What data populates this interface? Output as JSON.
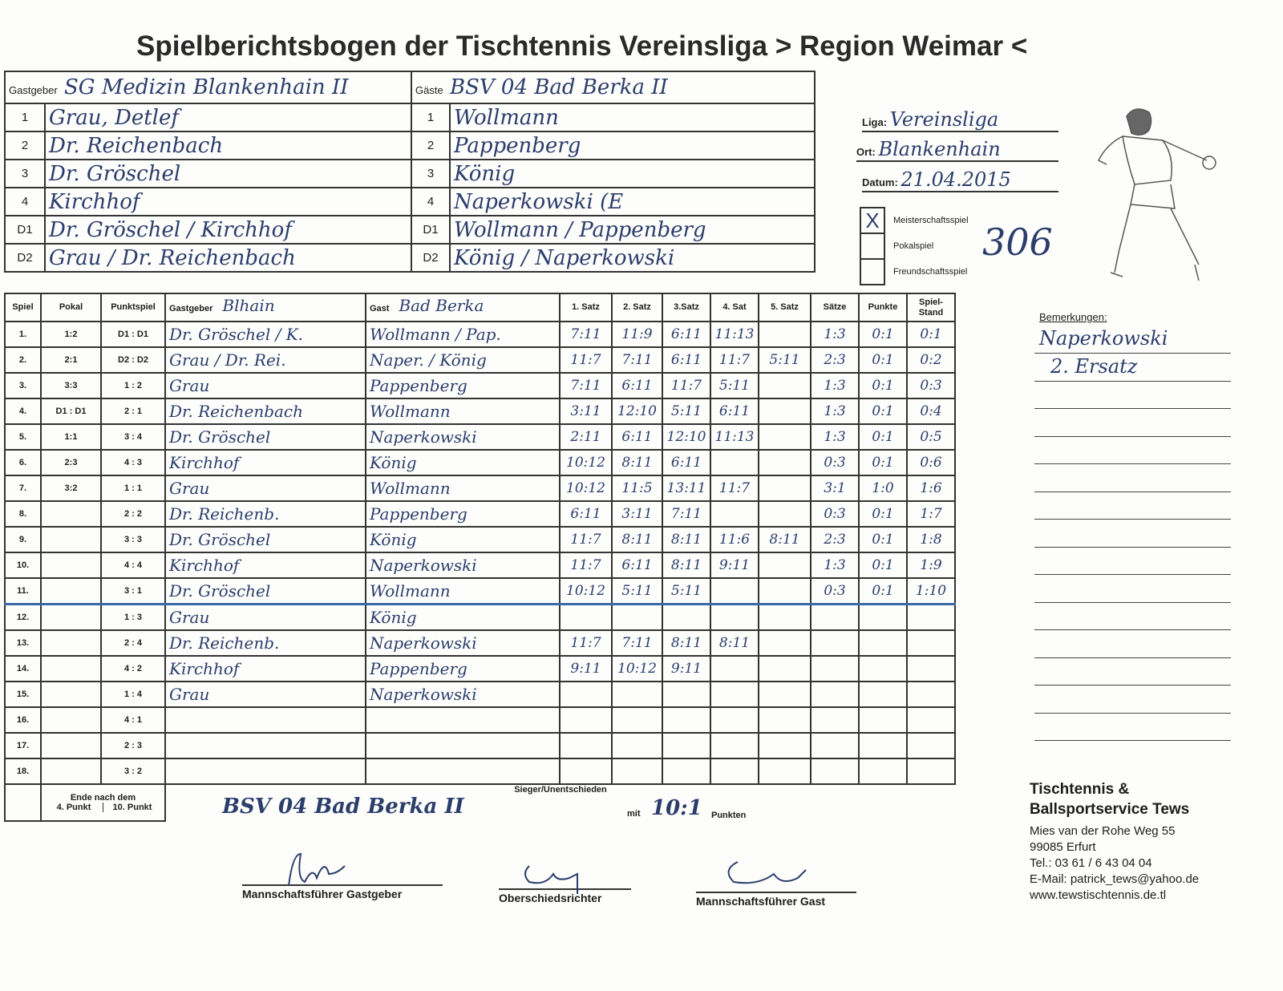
{
  "title": "Spielberichtsbogen der Tischtennis Vereinsliga > Region Weimar <",
  "players": {
    "host_label": "Gastgeber",
    "host_team": "SG Medizin Blankenhain II",
    "guest_label": "Gäste",
    "guest_team": "BSV 04 Bad Berka II",
    "rows": [
      {
        "no": "1",
        "host": "Grau, Detlef",
        "guest": "Wollmann"
      },
      {
        "no": "2",
        "host": "Dr. Reichenbach",
        "guest": "Pappenberg"
      },
      {
        "no": "3",
        "host": "Dr. Gröschel",
        "guest": "König"
      },
      {
        "no": "4",
        "host": "Kirchhof",
        "guest": "Naperkowski (E"
      },
      {
        "no": "D1",
        "host": "Dr. Gröschel / Kirchhof",
        "guest": "Wollmann / Pappenberg"
      },
      {
        "no": "D2",
        "host": "Grau / Dr. Reichenbach",
        "guest": "König / Naperkowski"
      }
    ]
  },
  "info": {
    "liga_label": "Liga:",
    "liga": "Vereinsliga",
    "ort_label": "Ort:",
    "ort": "Blankenhain",
    "datum_label": "Datum:",
    "datum": "21.04.2015",
    "types": [
      {
        "label": "Meisterschaftsspiel",
        "checked": true
      },
      {
        "label": "Pokalspiel",
        "checked": false
      },
      {
        "label": "Freundschaftsspiel",
        "checked": false
      }
    ],
    "number": "306"
  },
  "table": {
    "headers": [
      "Spiel",
      "Pokal",
      "Punktspiel",
      "Gastgeber",
      "Gast",
      "1. Satz",
      "2. Satz",
      "3.Satz",
      "4. Sat",
      "5. Satz",
      "Sätze",
      "Punkte",
      "Spiel-Stand"
    ],
    "host_hw": "Blhain",
    "guest_hw": "Bad Berka",
    "rows": [
      [
        "1.",
        "1:2",
        "D1 : D1",
        "Dr. Gröschel / K.",
        "Wollmann / Pap.",
        "7:11",
        "11:9",
        "6:11",
        "11:13",
        "",
        "1:3",
        "0:1",
        "0:1"
      ],
      [
        "2.",
        "2:1",
        "D2 : D2",
        "Grau / Dr. Rei.",
        "Naper. / König",
        "11:7",
        "7:11",
        "6:11",
        "11:7",
        "5:11",
        "2:3",
        "0:1",
        "0:2"
      ],
      [
        "3.",
        "3:3",
        "1 : 2",
        "Grau",
        "Pappenberg",
        "7:11",
        "6:11",
        "11:7",
        "5:11",
        "",
        "1:3",
        "0:1",
        "0:3"
      ],
      [
        "4.",
        "D1 : D1",
        "2 : 1",
        "Dr. Reichenbach",
        "Wollmann",
        "3:11",
        "12:10",
        "5:11",
        "6:11",
        "",
        "1:3",
        "0:1",
        "0:4"
      ],
      [
        "5.",
        "1:1",
        "3 : 4",
        "Dr. Gröschel",
        "Naperkowski",
        "2:11",
        "6:11",
        "12:10",
        "11:13",
        "",
        "1:3",
        "0:1",
        "0:5"
      ],
      [
        "6.",
        "2:3",
        "4 : 3",
        "Kirchhof",
        "König",
        "10:12",
        "8:11",
        "6:11",
        "",
        "",
        "0:3",
        "0:1",
        "0:6"
      ],
      [
        "7.",
        "3:2",
        "1 : 1",
        "Grau",
        "Wollmann",
        "10:12",
        "11:5",
        "13:11",
        "11:7",
        "",
        "3:1",
        "1:0",
        "1:6"
      ],
      [
        "8.",
        "",
        "2 : 2",
        "Dr. Reichenb.",
        "Pappenberg",
        "6:11",
        "3:11",
        "7:11",
        "",
        "",
        "0:3",
        "0:1",
        "1:7"
      ],
      [
        "9.",
        "",
        "3 : 3",
        "Dr. Gröschel",
        "König",
        "11:7",
        "8:11",
        "8:11",
        "11:6",
        "8:11",
        "2:3",
        "0:1",
        "1:8"
      ],
      [
        "10.",
        "",
        "4 : 4",
        "Kirchhof",
        "Naperkowski",
        "11:7",
        "6:11",
        "8:11",
        "9:11",
        "",
        "1:3",
        "0:1",
        "1:9"
      ],
      [
        "11.",
        "",
        "3 : 1",
        "Dr. Gröschel",
        "Wollmann",
        "10:12",
        "5:11",
        "5:11",
        "",
        "",
        "0:3",
        "0:1",
        "1:10"
      ],
      [
        "12.",
        "",
        "1 : 3",
        "Grau",
        "König",
        "",
        "",
        "",
        "",
        "",
        "",
        "",
        ""
      ],
      [
        "13.",
        "",
        "2 : 4",
        "Dr. Reichenb.",
        "Naperkowski",
        "11:7",
        "7:11",
        "8:11",
        "8:11",
        "",
        "",
        "",
        ""
      ],
      [
        "14.",
        "",
        "4 : 2",
        "Kirchhof",
        "Pappenberg",
        "9:11",
        "10:12",
        "9:11",
        "",
        "",
        "",
        "",
        ""
      ],
      [
        "15.",
        "",
        "1 : 4",
        "Grau",
        "Naperkowski",
        "",
        "",
        "",
        "",
        "",
        "",
        "",
        ""
      ],
      [
        "16.",
        "",
        "4 : 1",
        "",
        "",
        "",
        "",
        "",
        "",
        "",
        "",
        "",
        ""
      ],
      [
        "17.",
        "",
        "2 : 3",
        "",
        "",
        "",
        "",
        "",
        "",
        "",
        "",
        "",
        ""
      ],
      [
        "18.",
        "",
        "3 : 2",
        "",
        "",
        "",
        "",
        "",
        "",
        "",
        "",
        "",
        ""
      ]
    ],
    "footer": {
      "end_label": "Ende nach dem",
      "p4": "4. Punkt",
      "p10": "10. Punkt",
      "winner_label": "Sieger/Unentschieden",
      "winner": "BSV 04 Bad Berka II",
      "mit": "mit",
      "score": "10:1",
      "punkten": "Punkten"
    }
  },
  "remarks": {
    "label": "Bemerkungen:",
    "lines": [
      "Naperkowski",
      "2. Ersatz"
    ]
  },
  "signatures": [
    "Mannschaftsführer Gastgeber",
    "Oberschiedsrichter",
    "Mannschaftsführer Gast"
  ],
  "address": {
    "company1": "Tischtennis &",
    "company2": "Ballsportservice Tews",
    "street": "Mies van der Rohe Weg 55",
    "city": "99085 Erfurt",
    "tel": "Tel.: 03 61 / 6 43 04 04",
    "email": "E-Mail: patrick_tews@yahoo.de",
    "web": "www.tewstischtennis.de.tl"
  },
  "colors": {
    "ink": "#2b3d6b",
    "lines": "#333333"
  }
}
